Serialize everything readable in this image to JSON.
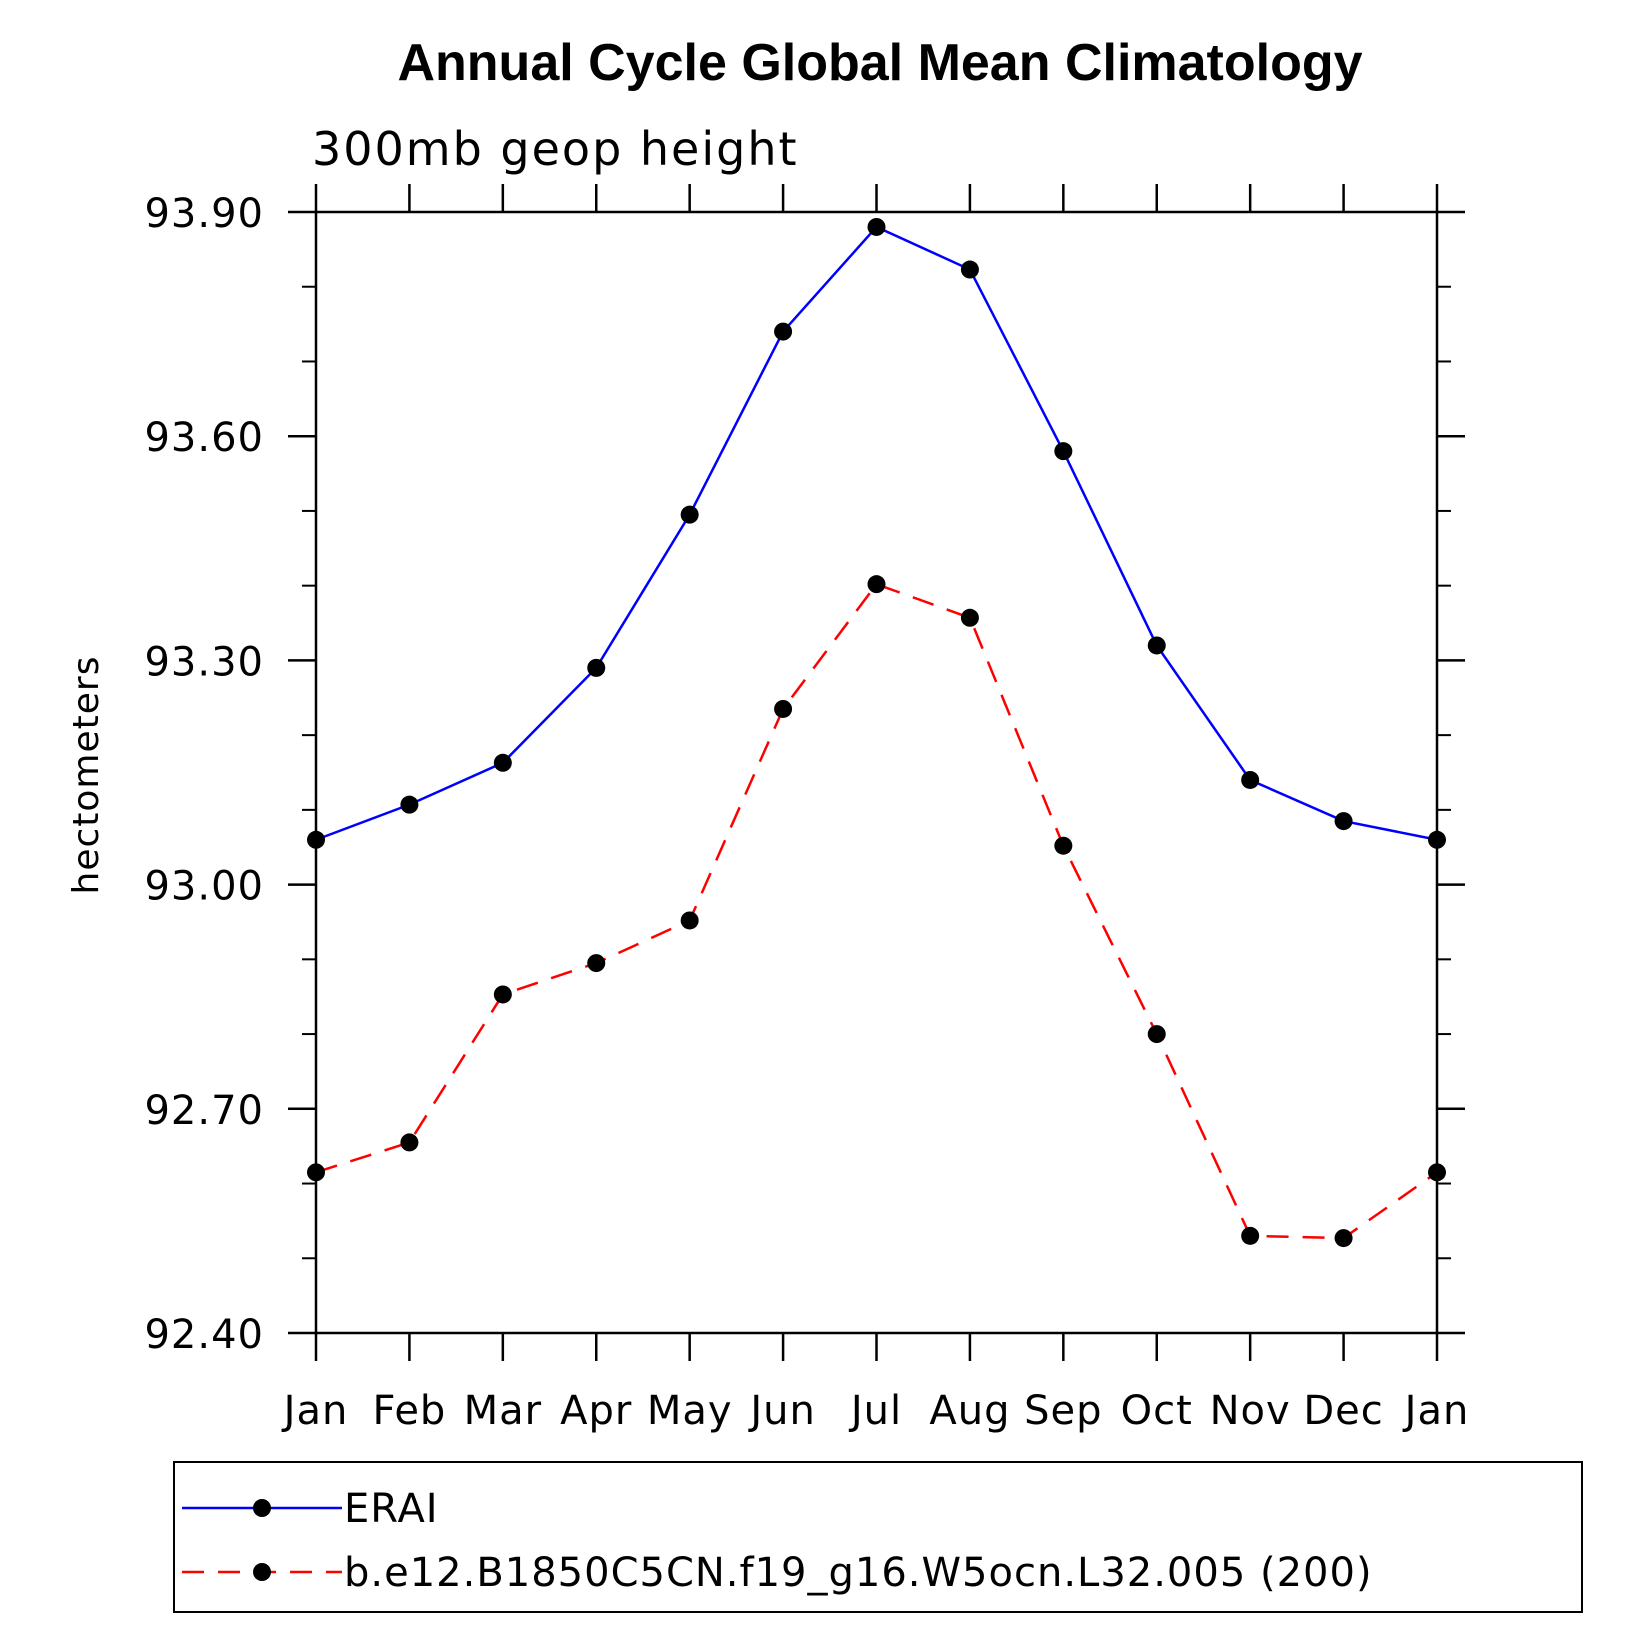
{
  "chart_data": {
    "type": "line",
    "title": "Annual Cycle Global Mean Climatology",
    "subtitle": "300mb geop height",
    "ylabel": "hectometers",
    "xlabel": "",
    "categories": [
      "Jan",
      "Feb",
      "Mar",
      "Apr",
      "May",
      "Jun",
      "Jul",
      "Aug",
      "Sep",
      "Oct",
      "Nov",
      "Dec",
      "Jan"
    ],
    "ylim": [
      92.4,
      93.9
    ],
    "yticks": [
      "93.90",
      "93.60",
      "93.30",
      "93.00",
      "92.70",
      "92.40"
    ],
    "legend_position": "bottom",
    "series": [
      {
        "name": "ERAI",
        "color": "#0000ff",
        "style": "solid",
        "marker": "filled-circle",
        "values": [
          93.06,
          93.107,
          93.163,
          93.29,
          93.495,
          93.74,
          93.88,
          93.823,
          93.58,
          93.32,
          93.14,
          93.085,
          93.06
        ]
      },
      {
        "name": "b.e12.B1850C5CN.f19_g16.W5ocn.L32.005 (200)",
        "color": "#ff0000",
        "style": "dashed",
        "marker": "filled-circle",
        "values": [
          92.615,
          92.655,
          92.853,
          92.895,
          92.952,
          93.235,
          93.402,
          93.357,
          93.052,
          92.8,
          92.53,
          92.527,
          92.615
        ]
      }
    ]
  }
}
